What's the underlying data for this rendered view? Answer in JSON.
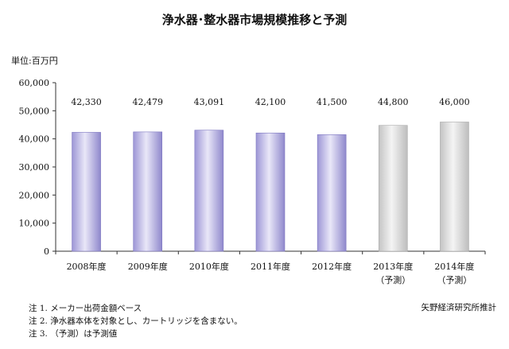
{
  "chart_data": {
    "type": "bar",
    "title": "浄水器･整水器市場規模推移と予測",
    "ylabel": "単位:百万円",
    "ylim": [
      0,
      60000
    ],
    "yticks": [
      "0",
      "10,000",
      "20,000",
      "30,000",
      "40,000",
      "50,000",
      "60,000"
    ],
    "categories": [
      "2008年度",
      "2009年度",
      "2010年度",
      "2011年度",
      "2012年度",
      "2013年度",
      "2014年度"
    ],
    "category_sublabels": [
      "",
      "",
      "",
      "",
      "",
      "（予測）",
      "（予測）"
    ],
    "values": [
      42330,
      42479,
      43091,
      42100,
      41500,
      44800,
      46000
    ],
    "value_labels": [
      "42,330",
      "42,479",
      "43,091",
      "42,100",
      "41,500",
      "44,800",
      "46,000"
    ],
    "forecast": [
      false,
      false,
      false,
      false,
      false,
      true,
      true
    ],
    "colors": {
      "actual": "#b9b3e2",
      "forecast": "#d8d8d8"
    },
    "grid": false,
    "legend": "none"
  },
  "notes": [
    "注 1. メーカー出荷金額ベース",
    "注 2. 浄水器本体を対象とし、カートリッジを含まない。",
    "注 3. （予測）は予測値"
  ],
  "source": "矢野経済研究所推計"
}
